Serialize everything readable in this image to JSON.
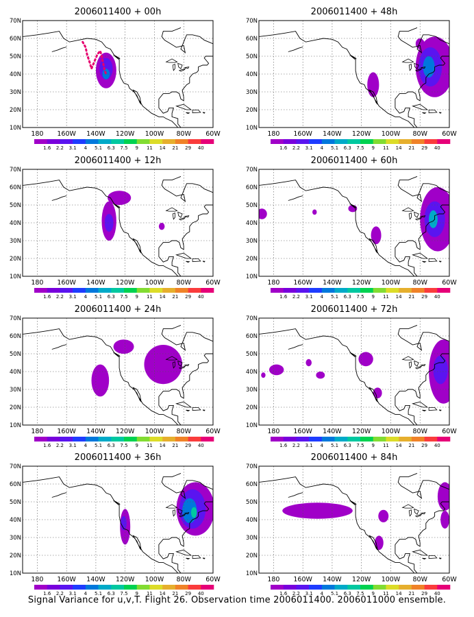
{
  "caption": "Signal Variance for u,v,T. Flight 26. Observation time 2006011400. 2006011000 ensemble.",
  "axes": {
    "lat_labels": [
      "10N",
      "20N",
      "30N",
      "40N",
      "50N",
      "60N",
      "70N"
    ],
    "lon_labels": [
      "180",
      "160W",
      "140W",
      "120W",
      "100W",
      "80W",
      "60W"
    ]
  },
  "colorbar": {
    "labels": [
      "1.6",
      "2.2",
      "3.1",
      "4",
      "5.1",
      "6.3",
      "7.5",
      "9",
      "11",
      "14",
      "21",
      "29",
      "40"
    ],
    "colors": [
      "#a000c8",
      "#7800dc",
      "#5a14f0",
      "#1e3cff",
      "#0078dc",
      "#00aac8",
      "#00c8a0",
      "#00d250",
      "#82dc32",
      "#dcdc28",
      "#e6af2d",
      "#f08228",
      "#fa3c3c",
      "#e60078"
    ]
  },
  "panels": [
    {
      "title": "2006011400 + 00h"
    },
    {
      "title": "2006011400 + 48h"
    },
    {
      "title": "2006011400 + 12h"
    },
    {
      "title": "2006011400 + 60h"
    },
    {
      "title": "2006011400 + 24h"
    },
    {
      "title": "2006011400 + 72h"
    },
    {
      "title": "2006011400 + 36h"
    },
    {
      "title": "2006011400 + 84h"
    }
  ]
}
